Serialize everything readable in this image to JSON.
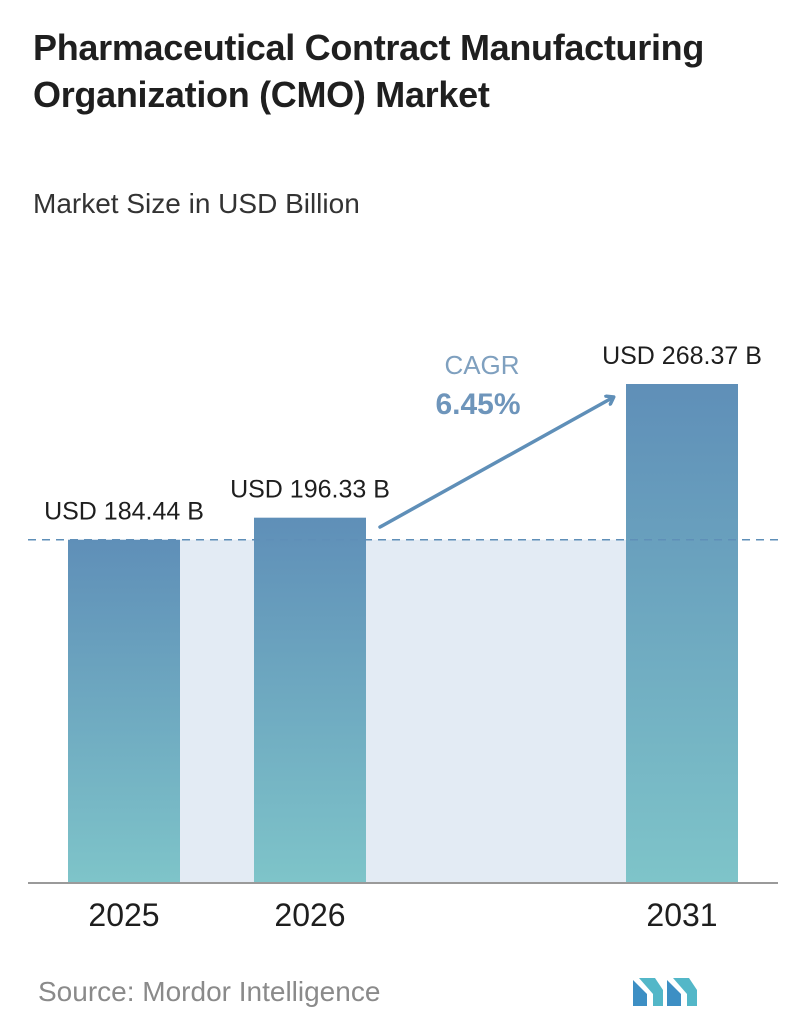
{
  "title": "Pharmaceutical Contract Manufacturing Organization (CMO) Market",
  "subtitle": "Market Size in USD Billion",
  "source": "Source:  Mordor Intelligence",
  "logo": "mordor-intelligence-logo",
  "colors": {
    "bar_top": "#5f8fb8",
    "bar_bottom": "#7ec4c9",
    "band": "#e3ebf4",
    "cagr_arrow": "#5f8fb8",
    "cagr_label": "#7fa0bf",
    "cagr_value": "#6e95bb",
    "baseline": "#9a9a9a"
  },
  "chart_data": {
    "type": "bar",
    "title": "Pharmaceutical Contract Manufacturing Organization (CMO) Market",
    "subtitle": "Market Size in USD Billion",
    "categories": [
      "2025",
      "2026",
      "2031"
    ],
    "values": [
      184.44,
      196.33,
      268.37
    ],
    "value_labels": [
      "USD 184.44 B",
      "USD 196.33 B",
      "USD 268.37 B"
    ],
    "unit": "USD Billion",
    "ylim": [
      0,
      268.37
    ],
    "grid": false,
    "legend": "none",
    "annotation": {
      "label": "CAGR",
      "value": "6.45%"
    }
  }
}
